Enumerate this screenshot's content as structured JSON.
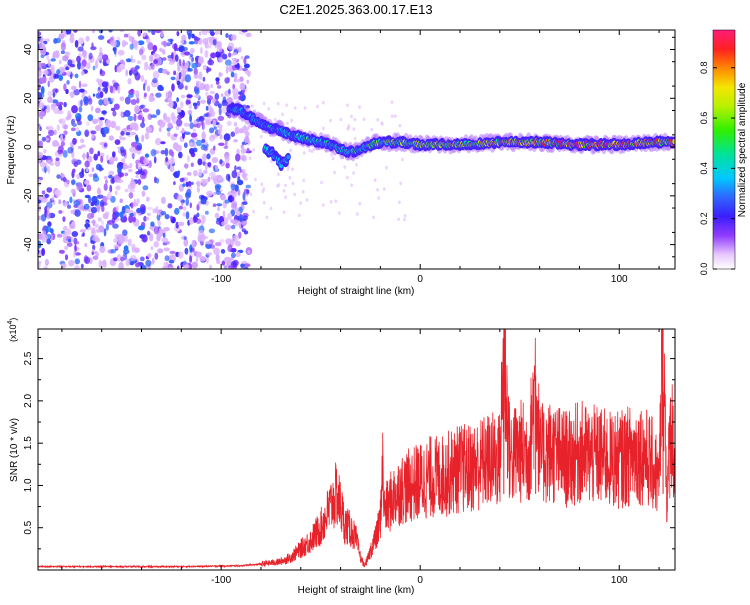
{
  "chart_data": [
    {
      "type": "heatmap",
      "title": "C2E1.2025.363.00.17.E13",
      "xlabel": "Height of straight line (km)",
      "ylabel": "Frequency (Hz)",
      "xlim": [
        -192,
        128
      ],
      "ylim": [
        -50,
        48
      ],
      "xticks": [
        -100,
        0,
        100
      ],
      "xtick_labels": [
        "-100",
        "0",
        "100"
      ],
      "yticks": [
        40,
        20,
        0,
        -20,
        -40
      ],
      "ytick_labels": [
        "40",
        "20",
        "0",
        "-20",
        "-40"
      ],
      "colorbar": {
        "label": "Normalized spectral amplitude",
        "range": [
          0.0,
          0.95
        ],
        "ticks": [
          0.0,
          0.2,
          0.4,
          0.6,
          0.8
        ],
        "tick_labels": [
          "0.0",
          "0.2",
          "0.4",
          "0.6",
          "0.8"
        ]
      },
      "noise_region": {
        "x_range": [
          -192,
          -86
        ],
        "amplitude_range": [
          0.05,
          0.3
        ]
      },
      "signal_trace": {
        "height_km": [
          -96,
          -90,
          -85,
          -80,
          -75,
          -70,
          -65,
          -60,
          -55,
          -50,
          -45,
          -40,
          -35,
          -30,
          -25,
          -20,
          -10,
          0,
          20,
          40,
          60,
          80,
          100,
          120,
          128
        ],
        "frequency_hz": [
          16,
          15,
          12,
          10,
          8,
          7,
          5,
          4,
          3,
          2,
          1,
          -1,
          -2,
          -1,
          1,
          2,
          2,
          1,
          1,
          2,
          2,
          1,
          1,
          2,
          2
        ],
        "amplitude": [
          0.25,
          0.3,
          0.28,
          0.3,
          0.32,
          0.3,
          0.35,
          0.4,
          0.4,
          0.38,
          0.36,
          0.4,
          0.38,
          0.42,
          0.45,
          0.5,
          0.55,
          0.6,
          0.6,
          0.65,
          0.7,
          0.75,
          0.8,
          0.7,
          0.65
        ]
      },
      "secondary_trace": {
        "height_km": [
          -78,
          -74,
          -70,
          -66
        ],
        "frequency_hz": [
          0,
          -3,
          -7,
          -4
        ]
      }
    },
    {
      "type": "line",
      "xlabel": "Height of straight line (km)",
      "ylabel": "SNR (10 * v/v)",
      "y_scale_label": "(x10",
      "y_scale_exponent": "4",
      "y_scale_close": ")",
      "xlim": [
        -192,
        128
      ],
      "ylim": [
        0,
        2.85
      ],
      "xticks": [
        -100,
        0,
        100
      ],
      "xtick_labels": [
        "-100",
        "0",
        "100"
      ],
      "yticks": [
        0.5,
        1.0,
        1.5,
        2.0,
        2.5
      ],
      "ytick_labels": [
        "0.5",
        "1.0",
        "1.5",
        "2.0",
        "2.5"
      ],
      "series": [
        {
          "name": "SNR",
          "color": "#e8222a",
          "x": [
            -192,
            -160,
            -120,
            -90,
            -80,
            -70,
            -65,
            -60,
            -55,
            -50,
            -48,
            -46,
            -44,
            -42,
            -40,
            -38,
            -36,
            -34,
            -32,
            -30,
            -28,
            -26,
            -24,
            -22,
            -20,
            -19,
            -18,
            -16,
            -14,
            -12,
            -10,
            -5,
            0,
            5,
            10,
            15,
            20,
            25,
            30,
            35,
            40,
            42,
            45,
            50,
            55,
            58,
            60,
            65,
            70,
            75,
            80,
            85,
            90,
            95,
            100,
            105,
            110,
            115,
            118,
            120,
            122,
            124,
            126,
            128
          ],
          "y": [
            0.04,
            0.04,
            0.04,
            0.05,
            0.07,
            0.1,
            0.15,
            0.25,
            0.35,
            0.5,
            0.6,
            0.7,
            0.8,
            0.9,
            0.75,
            0.55,
            0.5,
            0.45,
            0.35,
            0.15,
            0.05,
            0.15,
            0.3,
            0.4,
            0.6,
            1.3,
            0.7,
            0.75,
            0.85,
            0.9,
            0.95,
            1.0,
            1.05,
            1.1,
            1.1,
            1.15,
            1.2,
            1.2,
            1.25,
            1.3,
            1.3,
            2.55,
            1.35,
            1.4,
            1.4,
            2.3,
            1.35,
            1.4,
            1.35,
            1.3,
            1.4,
            1.35,
            1.35,
            1.3,
            1.3,
            1.35,
            1.4,
            1.3,
            1.2,
            1.0,
            2.85,
            0.8,
            1.8,
            1.2
          ]
        }
      ]
    }
  ]
}
